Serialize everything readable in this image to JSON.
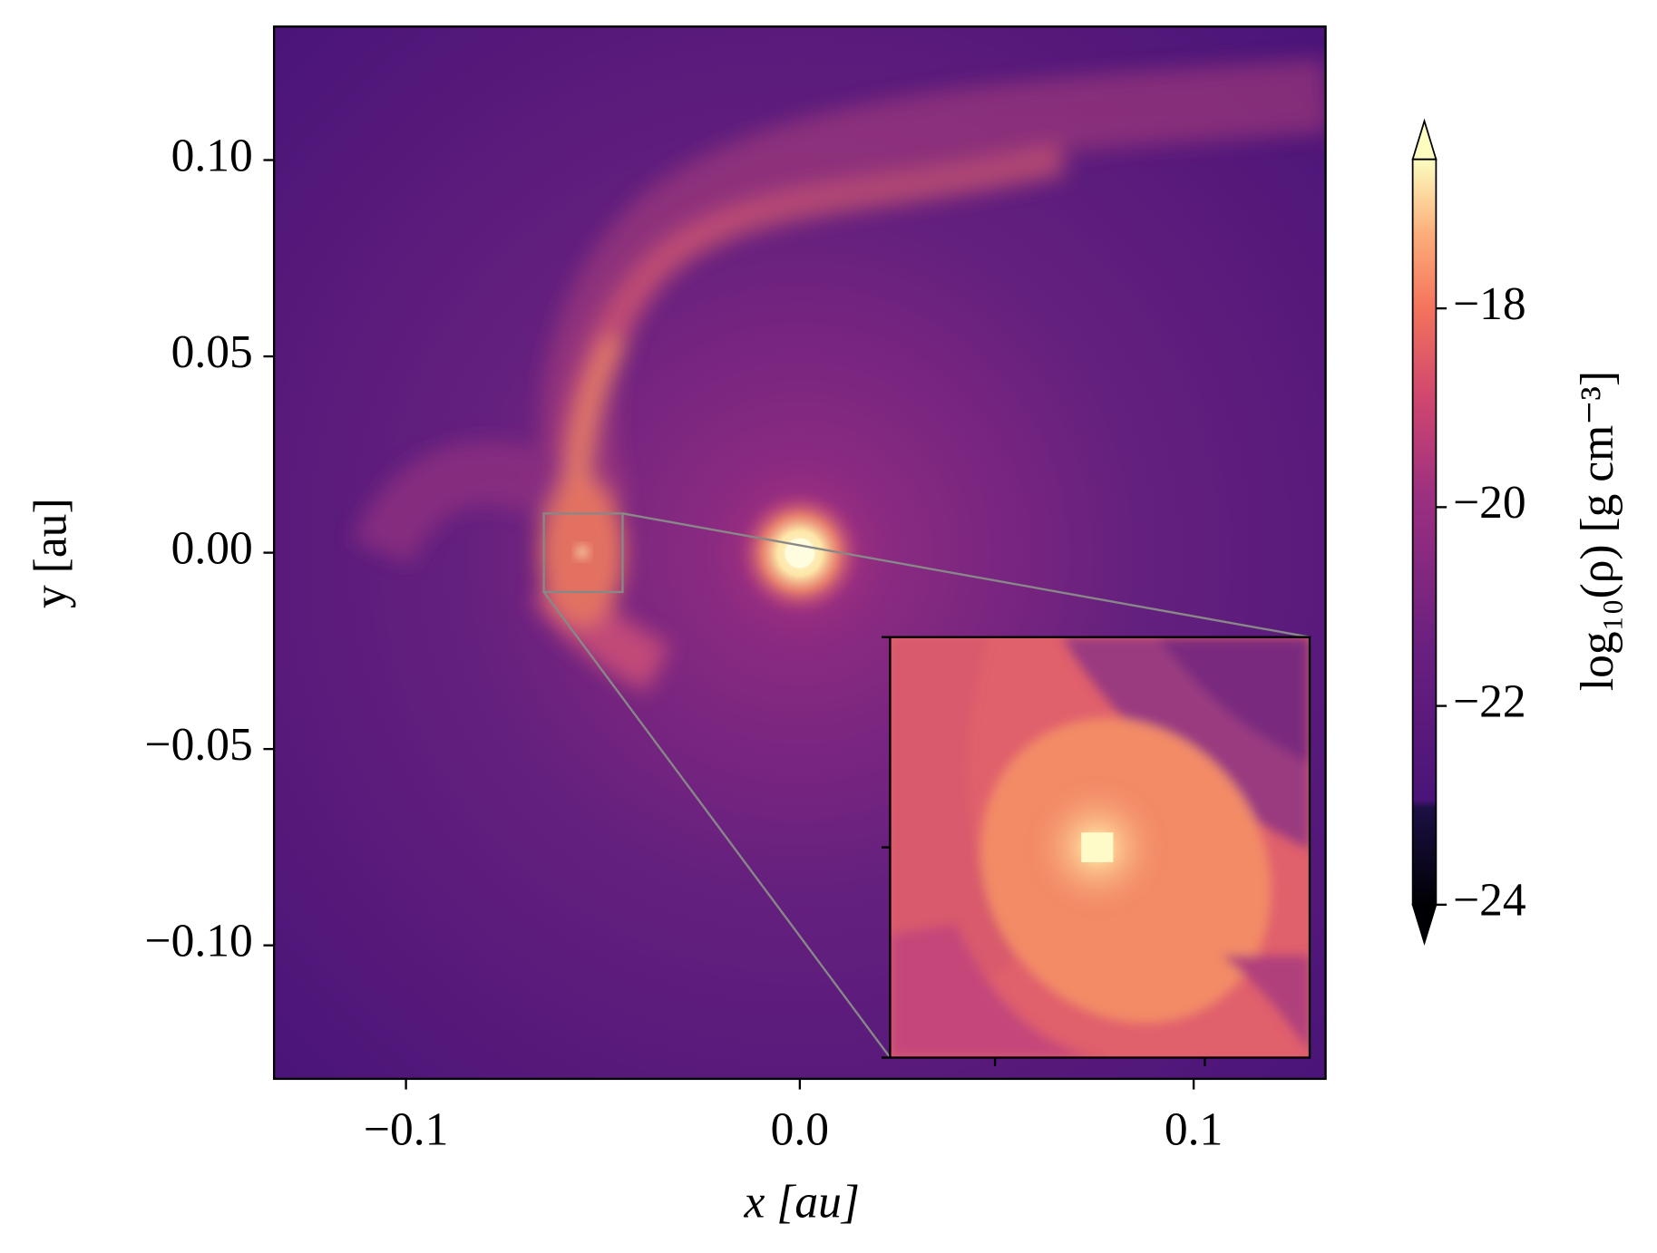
{
  "chart_data": {
    "type": "image",
    "xlabel": "x  [au]",
    "ylabel": "y  [au]",
    "xlim": [
      -0.1335,
      0.1335
    ],
    "ylim": [
      -0.134,
      0.134
    ],
    "xticks": [
      {
        "value": -0.1,
        "label": "−0.1"
      },
      {
        "value": 0,
        "label": "0.0"
      },
      0.1
    ],
    "yticks": [
      {
        "value": -0.1,
        "label": "−0.10"
      },
      {
        "value": -0.05,
        "label": "−0.05"
      },
      {
        "value": 0,
        "label": "0.00"
      },
      0.05,
      {
        "value": 0.1,
        "label": "0.10"
      }
    ],
    "colormap": "magma",
    "colorbar": {
      "label": "log₁₀(ρ)  [g cm⁻³]",
      "lim": [
        -24,
        -16.5
      ],
      "extend": "both",
      "ticks": [
        {
          "value": -24,
          "label": "−24"
        },
        {
          "value": -22,
          "label": "−22"
        },
        {
          "value": -20,
          "label": "−20"
        },
        {
          "value": -18,
          "label": "−18"
        }
      ]
    },
    "inset": {
      "xlim": [
        -0.065,
        -0.045
      ],
      "ylim": [
        -0.01,
        0.01
      ],
      "xticks": [
        -0.06,
        -0.05
      ],
      "yticks": [
        -0.01,
        0,
        0.01
      ]
    }
  }
}
